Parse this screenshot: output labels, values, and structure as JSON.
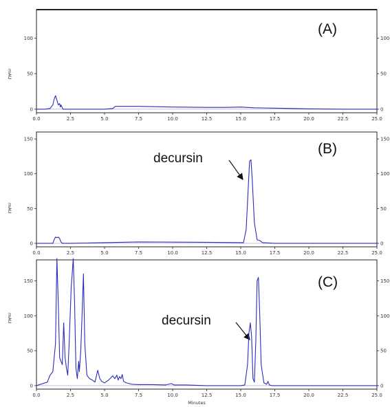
{
  "chart_data": [
    {
      "type": "line",
      "panel_label": "(A)",
      "ylabel": "mAU",
      "xlim": [
        0,
        25
      ],
      "ylim": [
        -5,
        140
      ],
      "y_ticks": [
        "0",
        "50",
        "100"
      ],
      "x_ticks": [
        "0.0",
        "2.5",
        "5.0",
        "7.5",
        "10.0",
        "12.5",
        "15.0",
        "17.5",
        "20.0",
        "22.5",
        "25.0"
      ],
      "series": [
        {
          "color": "#2b2bb8",
          "x": [
            0,
            0.6,
            1.0,
            1.2,
            1.3,
            1.4,
            1.5,
            1.6,
            1.7,
            1.75,
            1.8,
            1.9,
            1.95,
            2.0,
            2.5,
            5.0,
            5.6,
            5.8,
            6.2,
            7.5,
            10.0,
            12.5,
            14.0,
            15.0,
            16.0,
            17.5,
            20.0,
            22.5,
            25.0
          ],
          "y": [
            0,
            0,
            1,
            6,
            14,
            19,
            13,
            6,
            8,
            3,
            6,
            2,
            0,
            0,
            0,
            0,
            1,
            4,
            4,
            4,
            3,
            2.5,
            2.5,
            3,
            2,
            1.5,
            0.5,
            0,
            0
          ]
        }
      ]
    },
    {
      "type": "line",
      "panel_label": "(B)",
      "ylabel": "mAU",
      "xlim": [
        0,
        25
      ],
      "ylim": [
        -5,
        160
      ],
      "y_ticks": [
        "0",
        "50",
        "100",
        "150"
      ],
      "x_ticks": [
        "0.0",
        "2.5",
        "5.0",
        "7.5",
        "10.0",
        "12.5",
        "15.0",
        "17.5",
        "20.0",
        "22.5",
        "25.0"
      ],
      "annotation": {
        "text": "decursin",
        "x": 15.7,
        "y": 118
      },
      "series": [
        {
          "color": "#2b2bb8",
          "x": [
            0,
            1.2,
            1.3,
            1.4,
            1.5,
            1.6,
            1.7,
            1.8,
            1.9,
            2.5,
            7.5,
            12.5,
            15.2,
            15.4,
            15.55,
            15.65,
            15.75,
            15.85,
            16.0,
            16.2,
            16.4,
            16.6,
            17.5,
            22.5,
            25.0
          ],
          "y": [
            0,
            0,
            5,
            9,
            8,
            9,
            7,
            2,
            0,
            0,
            2,
            1.5,
            1,
            20,
            80,
            118,
            120,
            90,
            30,
            5,
            4,
            1,
            0,
            0,
            0
          ]
        }
      ]
    },
    {
      "type": "line",
      "panel_label": "(C)",
      "ylabel": "mAU",
      "xlim": [
        0,
        25
      ],
      "ylim": [
        -5,
        180
      ],
      "y_ticks": [
        "0",
        "50",
        "100",
        "150"
      ],
      "x_ticks": [
        "0.0",
        "2.5",
        "5.0",
        "7.5",
        "10.0",
        "12.5",
        "15.0",
        "17.5",
        "20.0",
        "22.5",
        "25.0"
      ],
      "xlabel": "Minutes",
      "annotation": {
        "text": "decursin",
        "x": 15.65,
        "y": 85
      },
      "series": [
        {
          "color": "#2b2bb8",
          "x": [
            0,
            0.8,
            1.0,
            1.2,
            1.4,
            1.5,
            1.6,
            1.7,
            1.8,
            1.9,
            2.0,
            2.1,
            2.2,
            2.3,
            2.4,
            2.55,
            2.7,
            2.8,
            2.9,
            3.0,
            3.1,
            3.15,
            3.25,
            3.35,
            3.45,
            3.55,
            3.7,
            3.9,
            4.1,
            4.3,
            4.5,
            4.65,
            4.8,
            5.0,
            5.3,
            5.6,
            5.75,
            5.9,
            6.0,
            6.1,
            6.2,
            6.3,
            6.4,
            6.6,
            7.0,
            7.5,
            8.5,
            9.5,
            9.9,
            10.1,
            11,
            12.5,
            15.0,
            15.3,
            15.5,
            15.6,
            15.7,
            15.8,
            15.9,
            16.0,
            16.1,
            16.2,
            16.3,
            16.4,
            16.5,
            16.7,
            16.9,
            17.0,
            17.1,
            17.3,
            18,
            20,
            22.5,
            25.0
          ],
          "y": [
            0,
            5,
            15,
            20,
            60,
            185,
            120,
            40,
            35,
            30,
            90,
            40,
            25,
            15,
            60,
            140,
            190,
            120,
            25,
            10,
            35,
            20,
            50,
            100,
            160,
            60,
            15,
            10,
            8,
            5,
            22,
            10,
            6,
            4,
            8,
            14,
            10,
            15,
            8,
            13,
            10,
            16,
            6,
            4,
            2,
            1.5,
            1.5,
            1,
            3,
            1,
            1,
            0,
            0,
            1,
            30,
            75,
            90,
            70,
            10,
            5,
            60,
            150,
            155,
            100,
            30,
            4,
            2,
            6,
            1,
            0,
            0,
            0,
            0,
            0
          ]
        }
      ]
    }
  ]
}
